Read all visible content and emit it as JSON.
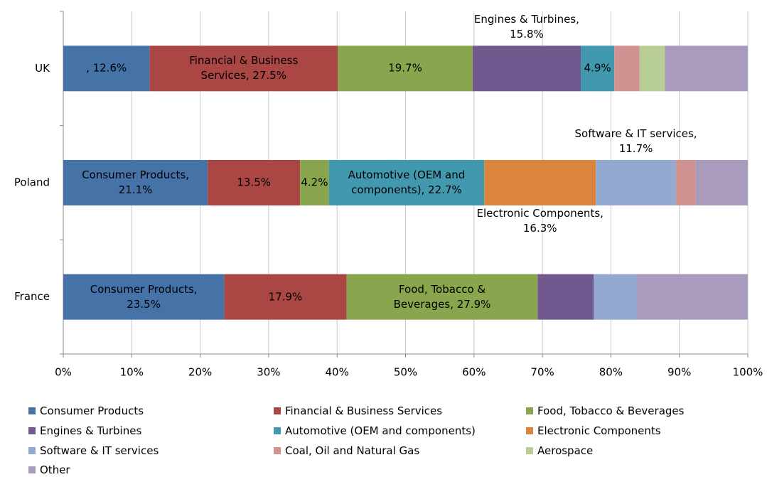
{
  "chart_data": {
    "type": "stacked-bar-horizontal",
    "categories": [
      "UK",
      "Poland",
      "France"
    ],
    "xlim": [
      0,
      100
    ],
    "xticks": [
      {
        "value": 0,
        "label": "0%"
      },
      {
        "value": 10,
        "label": "10%"
      },
      {
        "value": 20,
        "label": "20%"
      },
      {
        "value": 30,
        "label": "30%"
      },
      {
        "value": 40,
        "label": "40%"
      },
      {
        "value": 50,
        "label": "50%"
      },
      {
        "value": 60,
        "label": "60%"
      },
      {
        "value": 70,
        "label": "70%"
      },
      {
        "value": 80,
        "label": "80%"
      },
      {
        "value": 90,
        "label": "90%"
      },
      {
        "value": 100,
        "label": "100%"
      }
    ],
    "grid": true,
    "legend": "bottom",
    "series": [
      {
        "name": "Consumer Products",
        "color": "#4572a7",
        "values": [
          12.6,
          21.1,
          23.5
        ],
        "value_labels": [
          ", 12.6%",
          "Consumer Products,\n21.1%",
          "Consumer Products,\n23.5%"
        ]
      },
      {
        "name": "Financial & Business Services",
        "color": "#aa4643",
        "values": [
          27.5,
          13.5,
          17.9
        ],
        "value_labels": [
          "Financial & Business\nServices, 27.5%",
          "13.5%",
          "17.9%"
        ]
      },
      {
        "name": "Food, Tobacco & Beverages",
        "color": "#89a54e",
        "values": [
          19.7,
          4.2,
          27.9
        ],
        "value_labels": [
          "19.7%",
          "4.2%",
          "Food, Tobacco &\nBeverages, 27.9%"
        ]
      },
      {
        "name": "Engines & Turbines",
        "color": "#71588f",
        "values": [
          15.8,
          0,
          8.2
        ],
        "value_labels": [
          "Engines & Turbines,\n15.8%",
          null,
          null
        ]
      },
      {
        "name": "Automotive (OEM and components)",
        "color": "#4198af",
        "values": [
          4.9,
          22.7,
          0
        ],
        "value_labels": [
          "4.9%",
          "Automotive (OEM and\ncomponents), 22.7%",
          null
        ]
      },
      {
        "name": "Electronic Components",
        "color": "#db843d",
        "values": [
          0,
          16.3,
          0
        ],
        "value_labels": [
          null,
          "Electronic Components,\n16.3%",
          null
        ]
      },
      {
        "name": "Software & IT services",
        "color": "#93a9cf",
        "values": [
          0,
          11.7,
          6.3
        ],
        "value_labels": [
          null,
          "Software & IT services,\n11.7%",
          null
        ]
      },
      {
        "name": "Coal, Oil and Natural Gas",
        "color": "#d19392",
        "values": [
          3.7,
          2.9,
          0
        ],
        "value_labels": [
          null,
          null,
          null
        ]
      },
      {
        "name": "Aerospace",
        "color": "#b9cd96",
        "values": [
          3.7,
          0,
          0
        ],
        "value_labels": [
          null,
          null,
          null
        ]
      },
      {
        "name": "Other",
        "color": "#a99bbd",
        "values": [
          12.1,
          7.6,
          16.2
        ],
        "value_labels": [
          null,
          null,
          null
        ]
      }
    ]
  }
}
